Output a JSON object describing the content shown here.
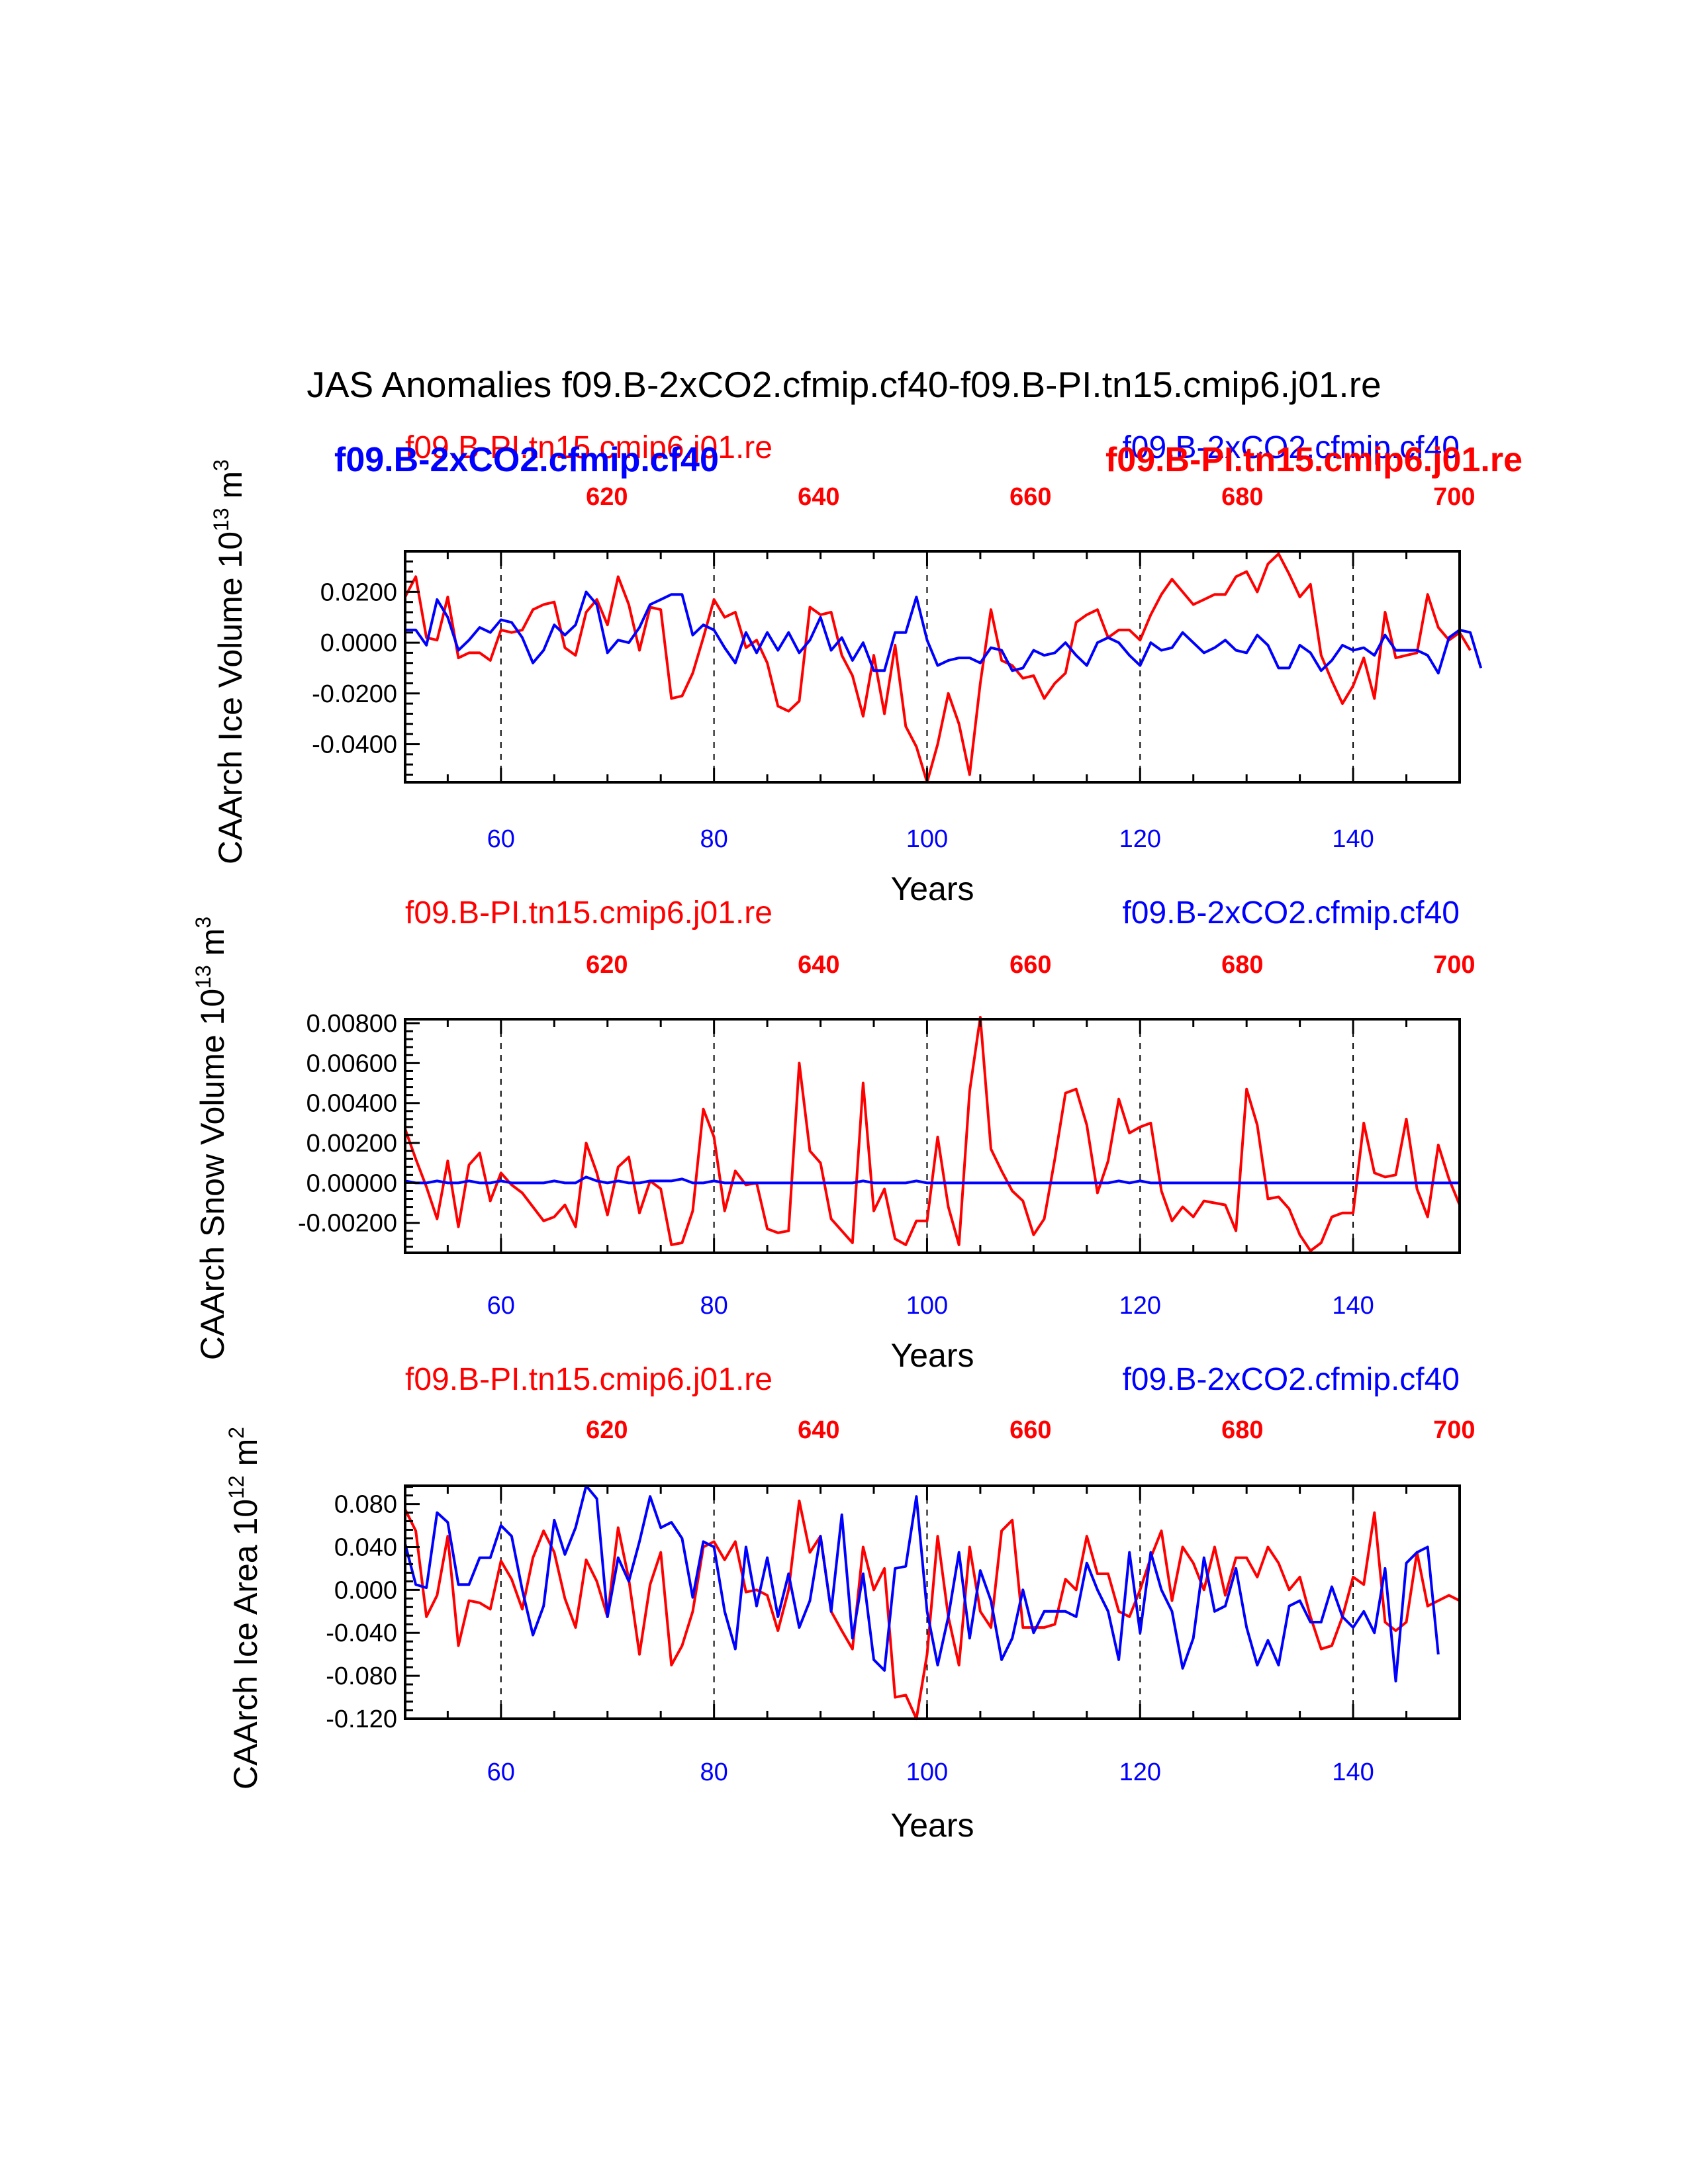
{
  "title": "JAS Anomalies f09.B-2xCO2.cfmip.cf40-f09.B-PI.tn15.cmip6.j01.re",
  "colors": {
    "red": "#ff0000",
    "blue": "#0000ff",
    "axis": "#000000"
  },
  "chart_data": [
    {
      "type": "line",
      "ylabel": "CAArch Ice Volume 10",
      "ylabel_exp": "13",
      "ylabel_unit": " m",
      "ylabel_unit_exp": "3",
      "xlabel": "Years",
      "label_left": "f09.B-PI.tn15.cmip6.j01.re",
      "label_right": "f09.B-2xCO2.cfmip.cf40",
      "label_left_bold": "f09.B-2xCO2.cfmip.cf40",
      "label_right_bold": "f09.B-PI.tn15.cmip6.j01.re",
      "xlim": [
        51,
        150
      ],
      "ylim": [
        -0.055,
        0.036
      ],
      "yticks": [
        -0.04,
        -0.02,
        0.0,
        0.02
      ],
      "ytick_labels": [
        "-0.0400",
        "-0.0200",
        "0.0000",
        "0.0200"
      ],
      "xticks_bottom": [
        60,
        80,
        100,
        120,
        140
      ],
      "xtick_labels_bottom": [
        "60",
        "80",
        "100",
        "120",
        "140"
      ],
      "xtick_labels_top": [
        "620",
        "640",
        "660",
        "680",
        "700"
      ],
      "series": [
        {
          "name": "f09.B-PI.tn15.cmip6.j01.re",
          "color": "red",
          "x_start": 51,
          "values": [
            0.018,
            0.026,
            0.002,
            0.001,
            0.018,
            -0.006,
            -0.004,
            -0.004,
            -0.007,
            0.005,
            0.004,
            0.005,
            0.013,
            0.015,
            0.016,
            -0.002,
            -0.005,
            0.012,
            0.017,
            0.007,
            0.026,
            0.015,
            -0.003,
            0.014,
            0.013,
            -0.022,
            -0.021,
            -0.012,
            0.002,
            0.017,
            0.01,
            0.012,
            -0.002,
            0.001,
            -0.008,
            -0.025,
            -0.027,
            -0.023,
            0.014,
            0.011,
            0.012,
            -0.005,
            -0.013,
            -0.029,
            -0.005,
            -0.028,
            -0.001,
            -0.033,
            -0.041,
            -0.055,
            -0.04,
            -0.02,
            -0.032,
            -0.052,
            -0.016,
            0.013,
            -0.007,
            -0.009,
            -0.014,
            -0.013,
            -0.022,
            -0.016,
            -0.012,
            0.008,
            0.011,
            0.013,
            0.002,
            0.005,
            0.005,
            0.001,
            0.011,
            0.019,
            0.025,
            0.02,
            0.015,
            0.017,
            0.019,
            0.019,
            0.026,
            0.028,
            0.02,
            0.031,
            0.035,
            0.027,
            0.018,
            0.023,
            -0.005,
            -0.015,
            -0.024,
            -0.017,
            -0.006,
            -0.022,
            0.012,
            -0.006,
            -0.005,
            -0.004,
            0.019,
            0.006,
            0.001,
            0.004,
            -0.003
          ]
        },
        {
          "name": "f09.B-2xCO2.cfmip.cf40",
          "color": "blue",
          "x_start": 51,
          "values": [
            0.005,
            0.005,
            -0.001,
            0.017,
            0.01,
            -0.003,
            0.001,
            0.006,
            0.004,
            0.009,
            0.008,
            0.002,
            -0.008,
            -0.003,
            0.007,
            0.003,
            0.007,
            0.02,
            0.015,
            -0.004,
            0.001,
            0.0,
            0.006,
            0.015,
            0.017,
            0.019,
            0.019,
            0.003,
            0.007,
            0.005,
            -0.002,
            -0.008,
            0.004,
            -0.004,
            0.004,
            -0.003,
            0.004,
            -0.004,
            0.001,
            0.01,
            -0.003,
            0.002,
            -0.007,
            0.0,
            -0.011,
            -0.011,
            0.004,
            0.004,
            0.018,
            0.001,
            -0.009,
            -0.007,
            -0.006,
            -0.006,
            -0.008,
            -0.002,
            -0.003,
            -0.011,
            -0.01,
            -0.003,
            -0.005,
            -0.004,
            0.0,
            -0.005,
            -0.009,
            0.0,
            0.002,
            0.0,
            -0.005,
            -0.009,
            0.0,
            -0.003,
            -0.002,
            0.004,
            0.0,
            -0.004,
            -0.002,
            0.001,
            -0.003,
            -0.004,
            0.003,
            -0.001,
            -0.01,
            -0.01,
            -0.001,
            -0.004,
            -0.011,
            -0.007,
            -0.001,
            -0.003,
            -0.002,
            -0.005,
            0.003,
            -0.003,
            -0.003,
            -0.003,
            -0.005,
            -0.012,
            0.002,
            0.005,
            0.004,
            -0.01
          ]
        }
      ]
    },
    {
      "type": "line",
      "ylabel": "CAArch Snow Volume 10",
      "ylabel_exp": "13",
      "ylabel_unit": " m",
      "ylabel_unit_exp": "3",
      "xlabel": "Years",
      "label_left": "f09.B-PI.tn15.cmip6.j01.re",
      "label_right": "f09.B-2xCO2.cfmip.cf40",
      "xlim": [
        51,
        150
      ],
      "ylim": [
        -0.0035,
        0.0082
      ],
      "yticks": [
        -0.002,
        0.0,
        0.002,
        0.004,
        0.006,
        0.008
      ],
      "ytick_labels": [
        "-0.00200",
        "0.00000",
        "0.00200",
        "0.00400",
        "0.00600",
        "0.00800"
      ],
      "xticks_bottom": [
        60,
        80,
        100,
        120,
        140
      ],
      "xtick_labels_bottom": [
        "60",
        "80",
        "100",
        "120",
        "140"
      ],
      "xtick_labels_top": [
        "620",
        "640",
        "660",
        "680",
        "700"
      ],
      "series": [
        {
          "name": "f09.B-PI.tn15.cmip6.j01.re",
          "color": "red",
          "x_start": 51,
          "values": [
            0.0027,
            0.0012,
            -0.0002,
            -0.0018,
            0.0011,
            -0.0022,
            0.0009,
            0.0015,
            -0.0009,
            0.0005,
            -0.0001,
            -0.0005,
            -0.0012,
            -0.0019,
            -0.0017,
            -0.0011,
            -0.0022,
            0.002,
            0.0005,
            -0.0016,
            0.0008,
            0.0013,
            -0.0015,
            0.0001,
            -0.0003,
            -0.0031,
            -0.003,
            -0.0014,
            0.0037,
            0.0023,
            -0.0014,
            0.0006,
            -0.0001,
            0.0,
            -0.0023,
            -0.0025,
            -0.0024,
            0.006,
            0.0016,
            0.001,
            -0.0018,
            -0.0024,
            -0.003,
            0.005,
            -0.0014,
            -0.0003,
            -0.0028,
            -0.0031,
            -0.0019,
            -0.0019,
            0.0023,
            -0.0012,
            -0.0031,
            0.0046,
            0.0083,
            0.0017,
            0.0006,
            -0.0004,
            -0.0009,
            -0.0026,
            -0.0018,
            0.0012,
            0.0045,
            0.0047,
            0.0029,
            -0.0005,
            0.0011,
            0.0042,
            0.0025,
            0.0028,
            0.003,
            -0.0004,
            -0.0019,
            -0.0012,
            -0.0017,
            -0.0009,
            -0.001,
            -0.0011,
            -0.0024,
            0.0047,
            0.0029,
            -0.0008,
            -0.0007,
            -0.0013,
            -0.0026,
            -0.0034,
            -0.003,
            -0.0017,
            -0.0015,
            -0.0015,
            0.003,
            0.0005,
            0.0003,
            0.0004,
            0.0032,
            -0.0003,
            -0.0017,
            0.0019,
            0.0002,
            -0.0011
          ]
        },
        {
          "name": "f09.B-2xCO2.cfmip.cf40",
          "color": "blue",
          "x_start": 51,
          "values": [
            0.0001,
            0.0,
            0.0,
            0.0001,
            0.0,
            0.0,
            0.0001,
            0.0,
            0.0,
            0.0001,
            0.0,
            0.0,
            0.0,
            0.0,
            0.0001,
            0.0,
            0.0,
            0.0003,
            0.0001,
            0.0,
            0.0001,
            0.0,
            0.0,
            0.0001,
            0.0001,
            0.0001,
            0.0002,
            0.0,
            0.0,
            0.0001,
            0.0,
            0.0,
            0.0,
            0.0,
            0.0,
            0.0,
            0.0,
            0.0,
            0.0,
            0.0,
            0.0,
            0.0,
            0.0,
            0.0001,
            0.0,
            0.0,
            0.0,
            0.0,
            0.0001,
            0.0,
            0.0,
            0.0,
            0.0,
            0.0,
            0.0,
            0.0,
            0.0,
            0.0,
            0.0,
            0.0,
            0.0,
            0.0,
            0.0,
            0.0,
            0.0,
            0.0,
            0.0,
            0.0001,
            0.0,
            0.0001,
            0.0,
            0.0,
            0.0,
            0.0,
            0.0,
            0.0,
            0.0,
            0.0,
            0.0,
            0.0,
            0.0,
            0.0,
            0.0,
            0.0,
            0.0,
            0.0,
            0.0,
            0.0,
            0.0,
            0.0,
            0.0,
            0.0,
            0.0,
            0.0,
            0.0,
            0.0,
            0.0,
            0.0,
            0.0,
            0.0
          ]
        }
      ]
    },
    {
      "type": "line",
      "ylabel": "CAArch Ice Area 10",
      "ylabel_exp": "12",
      "ylabel_unit": " m",
      "ylabel_unit_exp": "2",
      "xlabel": "Years",
      "label_left": "f09.B-PI.tn15.cmip6.j01.re",
      "label_right": "f09.B-2xCO2.cfmip.cf40",
      "xlim": [
        51,
        150
      ],
      "ylim": [
        -0.12,
        0.097
      ],
      "yticks": [
        -0.12,
        -0.08,
        -0.04,
        0.0,
        0.04,
        0.08
      ],
      "ytick_labels": [
        "-0.120",
        "-0.080",
        "-0.040",
        "0.000",
        "0.040",
        "0.080"
      ],
      "xticks_bottom": [
        60,
        80,
        100,
        120,
        140
      ],
      "xtick_labels_bottom": [
        "60",
        "80",
        "100",
        "120",
        "140"
      ],
      "xtick_labels_top": [
        "620",
        "640",
        "660",
        "680",
        "700"
      ],
      "series": [
        {
          "name": "f09.B-PI.tn15.cmip6.j01.re",
          "color": "red",
          "x_start": 51,
          "values": [
            0.075,
            0.055,
            -0.025,
            -0.005,
            0.05,
            -0.052,
            -0.01,
            -0.012,
            -0.018,
            0.027,
            0.01,
            -0.018,
            0.03,
            0.055,
            0.035,
            -0.008,
            -0.035,
            0.028,
            0.008,
            -0.025,
            0.058,
            0.01,
            -0.06,
            0.005,
            0.035,
            -0.07,
            -0.052,
            -0.02,
            0.04,
            0.045,
            0.028,
            0.045,
            -0.002,
            0.0,
            -0.005,
            -0.038,
            0.0,
            0.083,
            0.035,
            0.05,
            -0.02,
            -0.038,
            -0.055,
            0.04,
            0.0,
            0.02,
            -0.1,
            -0.098,
            -0.12,
            -0.06,
            0.05,
            -0.025,
            -0.07,
            0.04,
            -0.02,
            -0.035,
            0.055,
            0.065,
            -0.035,
            -0.035,
            -0.035,
            -0.032,
            0.01,
            0.0,
            0.05,
            0.015,
            0.015,
            -0.02,
            -0.025,
            0.0,
            0.03,
            0.055,
            -0.01,
            0.04,
            0.025,
            0.0,
            0.04,
            -0.005,
            0.03,
            0.03,
            0.012,
            0.04,
            0.025,
            0.0,
            0.012,
            -0.025,
            -0.055,
            -0.052,
            -0.025,
            0.012,
            0.005,
            0.072,
            -0.03,
            -0.038,
            -0.03,
            0.035,
            -0.015,
            -0.01,
            -0.005,
            -0.01
          ]
        },
        {
          "name": "f09.B-2xCO2.cfmip.cf40",
          "color": "blue",
          "x_start": 51,
          "values": [
            0.043,
            0.005,
            0.002,
            0.072,
            0.063,
            0.005,
            0.005,
            0.03,
            0.03,
            0.06,
            0.05,
            0.0,
            -0.042,
            -0.015,
            0.065,
            0.033,
            0.058,
            0.097,
            0.085,
            -0.025,
            0.03,
            0.008,
            0.045,
            0.087,
            0.058,
            0.063,
            0.048,
            -0.007,
            0.045,
            0.04,
            -0.02,
            -0.055,
            0.04,
            -0.015,
            0.03,
            -0.025,
            0.015,
            -0.035,
            -0.01,
            0.05,
            -0.02,
            0.07,
            -0.045,
            0.015,
            -0.065,
            -0.075,
            0.02,
            0.022,
            0.087,
            -0.02,
            -0.07,
            -0.025,
            0.035,
            -0.045,
            0.018,
            -0.01,
            -0.065,
            -0.045,
            0.0,
            -0.04,
            -0.02,
            -0.02,
            -0.02,
            -0.025,
            0.025,
            0.0,
            -0.02,
            -0.065,
            0.035,
            -0.04,
            0.035,
            0.0,
            -0.02,
            -0.073,
            -0.045,
            0.03,
            -0.02,
            -0.015,
            0.02,
            -0.035,
            -0.07,
            -0.047,
            -0.07,
            -0.015,
            -0.01,
            -0.03,
            -0.03,
            0.003,
            -0.025,
            -0.035,
            -0.02,
            -0.04,
            0.02,
            -0.085,
            0.025,
            0.035,
            0.04,
            -0.06
          ]
        }
      ]
    }
  ]
}
